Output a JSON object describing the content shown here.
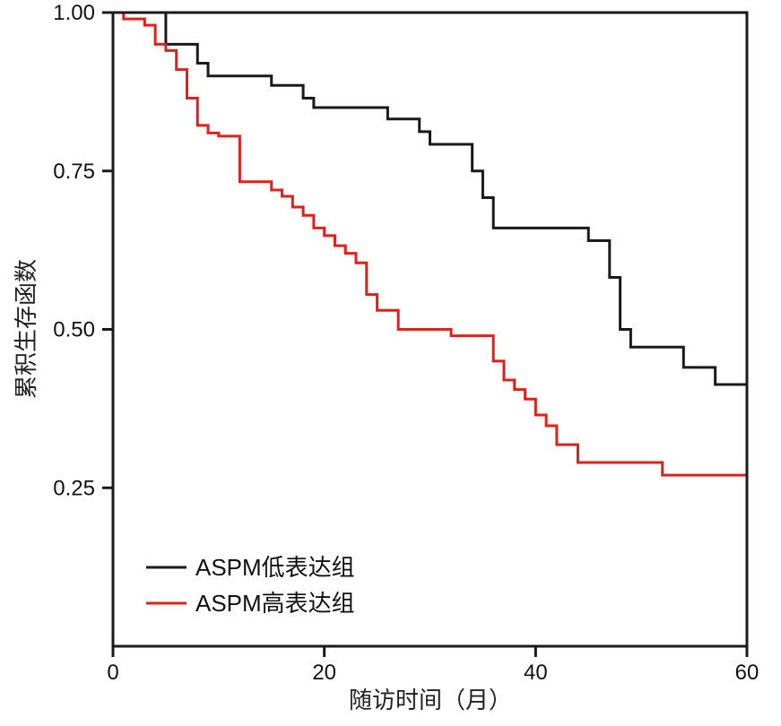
{
  "chart_data": {
    "type": "line",
    "step": true,
    "xlabel": "随访时间（月）",
    "ylabel": "累积生存函数",
    "xlim": [
      0,
      60
    ],
    "ylim": [
      0,
      1.0
    ],
    "x_ticks": [
      0,
      20,
      40,
      60
    ],
    "x_tick_labels": [
      "0",
      "20",
      "40",
      "60"
    ],
    "y_ticks": [
      0.25,
      0.5,
      0.75,
      1.0
    ],
    "y_tick_labels": [
      "0.25",
      "0.50",
      "0.75",
      "1.00"
    ],
    "grid": false,
    "legend_position": "bottom-left",
    "series": [
      {
        "name": "ASPM低表达组",
        "color": "#1a1a1a",
        "x": [
          0,
          4,
          5,
          8,
          9,
          15,
          18,
          19,
          26,
          29,
          30,
          34,
          35,
          36,
          45,
          47,
          48,
          49,
          54,
          57,
          60
        ],
        "y": [
          1.0,
          1.0,
          0.95,
          0.92,
          0.9,
          0.885,
          0.865,
          0.85,
          0.832,
          0.812,
          0.792,
          0.75,
          0.708,
          0.66,
          0.64,
          0.582,
          0.5,
          0.472,
          0.44,
          0.413,
          0.382
        ]
      },
      {
        "name": "ASPM高表达组",
        "color": "#e0201b",
        "x": [
          0,
          1,
          3,
          4,
          5,
          6,
          7,
          8,
          9,
          10,
          12,
          15,
          16,
          17,
          18,
          19,
          20,
          21,
          22,
          23,
          24,
          25,
          27,
          32,
          36,
          37,
          38,
          39,
          40,
          41,
          42,
          44,
          52,
          60
        ],
        "y": [
          1.0,
          0.99,
          0.98,
          0.95,
          0.94,
          0.91,
          0.865,
          0.822,
          0.81,
          0.805,
          0.733,
          0.72,
          0.71,
          0.693,
          0.68,
          0.66,
          0.648,
          0.632,
          0.62,
          0.605,
          0.555,
          0.53,
          0.5,
          0.49,
          0.45,
          0.42,
          0.405,
          0.39,
          0.365,
          0.348,
          0.318,
          0.29,
          0.27,
          0.27
        ]
      }
    ]
  }
}
